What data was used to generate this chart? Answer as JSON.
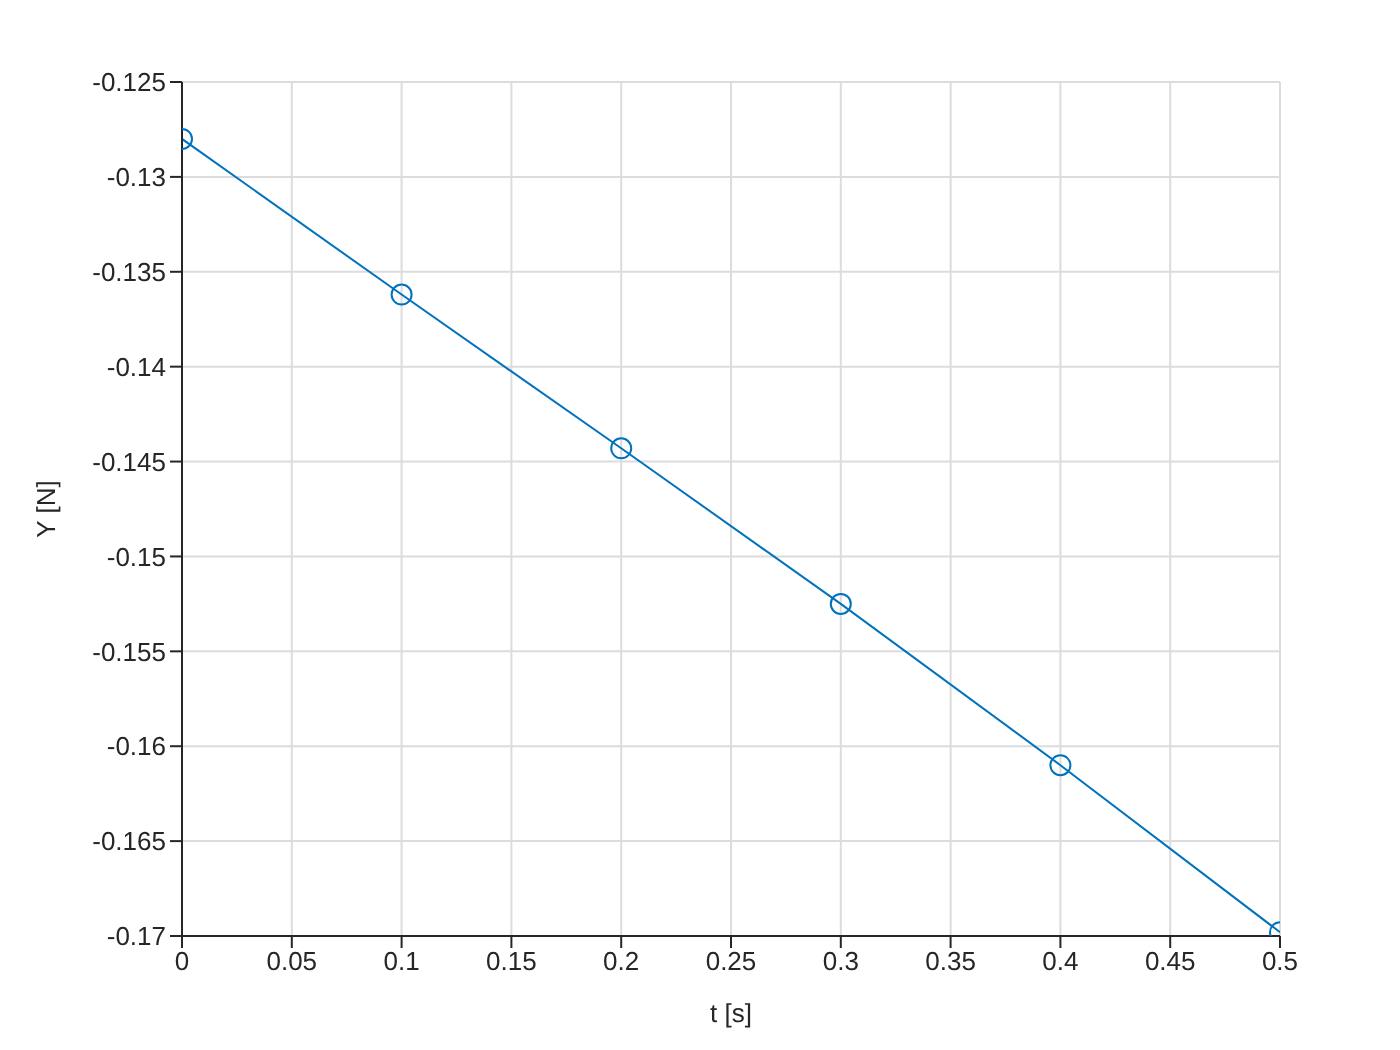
{
  "chart_data": {
    "type": "line",
    "xlabel": "t [s]",
    "ylabel": "Y [N]",
    "x": [
      0,
      0.1,
      0.2,
      0.3,
      0.4,
      0.5
    ],
    "series": [
      {
        "color": "#0072bd",
        "values": [
          -0.128,
          -0.1362,
          -0.1443,
          -0.1525,
          -0.161,
          -0.1698
        ]
      }
    ],
    "xlim": [
      0,
      0.5
    ],
    "xticks": [
      0,
      0.05,
      0.1,
      0.15,
      0.2,
      0.25,
      0.3,
      0.35,
      0.4,
      0.45,
      0.5
    ],
    "ylim": [
      -0.17,
      -0.125
    ],
    "yticks": [
      -0.17,
      -0.165,
      -0.16,
      -0.155,
      -0.15,
      -0.145,
      -0.14,
      -0.135,
      -0.13,
      -0.125
    ],
    "grid": true,
    "marker": "circle",
    "line_style": "solid"
  }
}
